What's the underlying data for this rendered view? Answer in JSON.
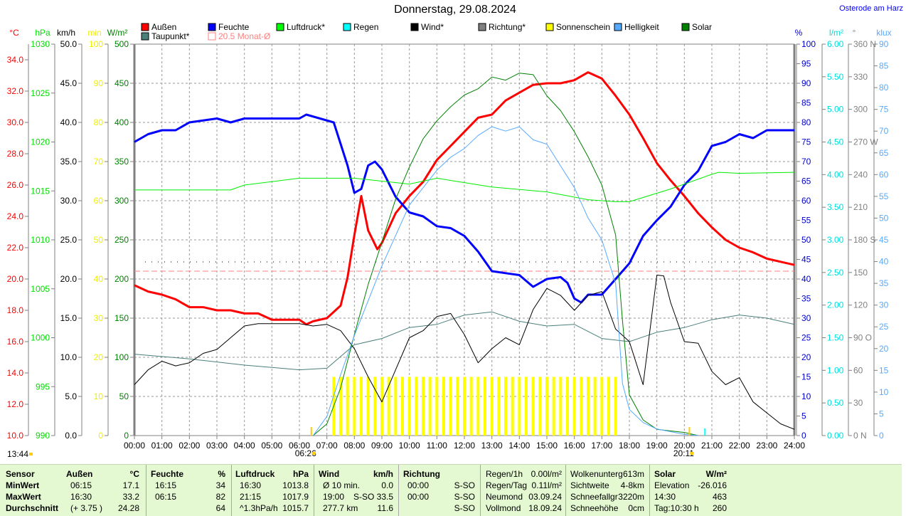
{
  "header": {
    "title": "Donnerstag, 29.08.2024",
    "station": "Osterode am Harz"
  },
  "legend": [
    {
      "label": "Außen",
      "color": "#ff0000"
    },
    {
      "label": "Feuchte",
      "color": "#0000ff"
    },
    {
      "label": "Luftdruck*",
      "color": "#00ff00"
    },
    {
      "label": "Regen",
      "color": "#00ffff"
    },
    {
      "label": "Wind*",
      "color": "#000000"
    },
    {
      "label": "Richtung*",
      "color": "#808080"
    },
    {
      "label": "Sonnenschein",
      "color": "#ffff00"
    },
    {
      "label": "Helligkeit",
      "color": "#55aaff"
    },
    {
      "label": "Solar",
      "color": "#008000"
    },
    {
      "label": "Taupunkt*",
      "color": "#4a7f7a"
    },
    {
      "label": "20.5 Monat-Ø",
      "color": "#ff8080"
    }
  ],
  "chart_data": {
    "type": "line",
    "title": "Donnerstag, 29.08.2024",
    "x_ticks": [
      "00:00",
      "01:00",
      "02:00",
      "03:00",
      "04:00",
      "05:00",
      "06:00",
      "07:00",
      "08:00",
      "09:00",
      "10:00",
      "11:00",
      "12:00",
      "13:00",
      "14:00",
      "15:00",
      "16:00",
      "17:00",
      "18:00",
      "19:00",
      "20:00",
      "21:00",
      "22:00",
      "23:00",
      "24:00"
    ],
    "sunrise": "06:26",
    "sunset": "20:11",
    "sunshine_total": "13:44",
    "monthly_avg_temp": 20.5,
    "axes": {
      "temp": {
        "unit": "°C",
        "range": [
          10,
          35
        ],
        "ticks": [
          "10.0",
          "12.0",
          "14.0",
          "16.0",
          "18.0",
          "20.0",
          "22.0",
          "24.0",
          "26.0",
          "28.0",
          "30.0",
          "32.0",
          "34.0"
        ],
        "color": "#ff0000"
      },
      "pressure": {
        "unit": "hPa",
        "range": [
          990,
          1030
        ],
        "ticks": [
          "990",
          "995",
          "1000",
          "1005",
          "1010",
          "1015",
          "1020",
          "1025",
          "1030"
        ],
        "color": "#00dd00"
      },
      "wind": {
        "unit": "km/h",
        "range": [
          0,
          50
        ],
        "ticks": [
          "0.0",
          "5.0",
          "10.0",
          "15.0",
          "20.0",
          "25.0",
          "30.0",
          "35.0",
          "40.0",
          "45.0",
          "50.0"
        ],
        "color": "#000000"
      },
      "sunshine": {
        "unit": "min",
        "range": [
          0,
          100
        ],
        "ticks": [
          "0",
          "10",
          "20",
          "30",
          "40",
          "50",
          "60",
          "70",
          "80",
          "90",
          "100"
        ],
        "color": "#eeee00"
      },
      "solar": {
        "unit": "W/m²",
        "range": [
          0,
          500
        ],
        "ticks": [
          "0",
          "50",
          "100",
          "150",
          "200",
          "250",
          "300",
          "350",
          "400",
          "450",
          "500"
        ],
        "color": "#008000"
      },
      "humidity": {
        "unit": "%",
        "range": [
          0,
          100
        ],
        "ticks": [
          "0",
          "5",
          "10",
          "15",
          "20",
          "25",
          "30",
          "35",
          "40",
          "45",
          "50",
          "55",
          "60",
          "65",
          "70",
          "75",
          "80",
          "85",
          "90",
          "95",
          "100"
        ],
        "color": "#0000cc"
      },
      "rain": {
        "unit": "l/m²",
        "range": [
          0,
          6
        ],
        "ticks": [
          "0.00",
          "0.50",
          "1.00",
          "1.50",
          "2.00",
          "2.50",
          "3.00",
          "3.50",
          "4.00",
          "4.50",
          "5.00",
          "5.50",
          "6.00"
        ],
        "color": "#00dddd"
      },
      "direction": {
        "unit": "°",
        "range": [
          0,
          360
        ],
        "ticks": [
          "0   N",
          "30",
          "60",
          "90   O",
          "120",
          "150",
          "180 S",
          "210",
          "240",
          "270 W",
          "300",
          "330",
          "360 N"
        ],
        "color": "#808080"
      },
      "brightness": {
        "unit": "klux",
        "range": [
          0,
          90
        ],
        "ticks": [
          "0",
          "5",
          "10",
          "15",
          "20",
          "25",
          "30",
          "35",
          "40",
          "45",
          "50",
          "55",
          "60",
          "65",
          "70",
          "75",
          "80",
          "85",
          "90"
        ],
        "color": "#55aaff"
      }
    },
    "series": [
      {
        "name": "Außen",
        "axis": "temp",
        "color": "#ff0000",
        "width": 3,
        "x": [
          "00:00",
          "00:30",
          "01:00",
          "01:30",
          "02:00",
          "02:30",
          "03:00",
          "03:30",
          "04:00",
          "04:30",
          "05:00",
          "05:30",
          "06:00",
          "06:15",
          "06:30",
          "07:00",
          "07:30",
          "07:45",
          "08:00",
          "08:15",
          "08:30",
          "08:50",
          "09:00",
          "09:30",
          "10:00",
          "10:30",
          "11:00",
          "11:30",
          "12:00",
          "12:30",
          "13:00",
          "13:30",
          "14:00",
          "14:30",
          "15:00",
          "15:30",
          "16:00",
          "16:30",
          "17:00",
          "17:30",
          "18:00",
          "18:30",
          "19:00",
          "19:30",
          "20:00",
          "20:30",
          "21:00",
          "21:30",
          "22:00",
          "22:30",
          "23:00",
          "23:30",
          "24:00"
        ],
        "y": [
          19.6,
          19.2,
          19.0,
          18.7,
          18.2,
          18.2,
          18.0,
          18.0,
          17.8,
          17.8,
          17.4,
          17.4,
          17.4,
          17.1,
          17.3,
          17.5,
          18.3,
          20.1,
          22.8,
          25.3,
          23.1,
          21.9,
          22.3,
          24.2,
          25.3,
          26.2,
          27.6,
          28.5,
          29.4,
          30.3,
          30.5,
          31.4,
          31.9,
          32.4,
          32.5,
          32.5,
          32.7,
          33.2,
          32.8,
          31.7,
          30.5,
          29.0,
          27.4,
          26.3,
          25.3,
          24.2,
          23.3,
          22.5,
          22.0,
          21.7,
          21.3,
          21.1,
          20.9
        ]
      },
      {
        "name": "Feuchte",
        "axis": "humidity",
        "color": "#0000ff",
        "width": 3,
        "x": [
          "00:00",
          "00:30",
          "01:00",
          "01:30",
          "02:00",
          "03:00",
          "03:30",
          "04:00",
          "05:00",
          "06:00",
          "06:15",
          "06:45",
          "07:15",
          "07:45",
          "08:00",
          "08:15",
          "08:30",
          "08:45",
          "09:00",
          "09:30",
          "10:00",
          "10:30",
          "11:00",
          "11:30",
          "12:00",
          "12:30",
          "13:00",
          "13:30",
          "14:00",
          "14:30",
          "15:00",
          "15:30",
          "15:45",
          "16:00",
          "16:15",
          "16:30",
          "17:00",
          "17:30",
          "18:00",
          "18:30",
          "19:00",
          "19:30",
          "20:00",
          "20:30",
          "21:00",
          "21:30",
          "22:00",
          "22:30",
          "23:00",
          "24:00"
        ],
        "y": [
          75,
          77,
          78,
          78,
          80,
          81,
          80,
          81,
          81,
          81,
          82,
          81,
          80,
          69,
          62,
          63,
          69,
          70,
          68,
          61,
          57,
          56,
          53.5,
          53,
          51,
          47,
          42,
          41.5,
          41,
          38,
          40,
          40.5,
          39,
          35,
          34,
          36,
          36,
          40,
          44,
          51,
          55,
          58.5,
          64,
          67.6,
          74,
          75,
          77,
          76,
          78,
          78
        ]
      },
      {
        "name": "Luftdruck*",
        "axis": "pressure",
        "color": "#00ee00",
        "width": 1,
        "x": [
          "00:00",
          "03:30",
          "04:00",
          "06:00",
          "08:00",
          "10:00",
          "11:00",
          "13:00",
          "15:00",
          "16:30",
          "17:30",
          "18:00",
          "19:30",
          "21:00",
          "21:15",
          "22:00",
          "24:00"
        ],
        "y": [
          1015.1,
          1015.1,
          1015.6,
          1016.3,
          1016.3,
          1015.7,
          1016.3,
          1015.4,
          1014.9,
          1014.1,
          1013.9,
          1013.9,
          1015.2,
          1016.7,
          1016.9,
          1016.8,
          1016.9
        ]
      },
      {
        "name": "Taupunkt*",
        "axis": "temp",
        "color": "#4a7f7a",
        "width": 1,
        "x": [
          "00:00",
          "02:00",
          "04:00",
          "06:00",
          "07:00",
          "08:00",
          "09:00",
          "10:00",
          "11:00",
          "12:00",
          "13:00",
          "14:00",
          "15:00",
          "16:00",
          "17:00",
          "18:00",
          "19:00",
          "20:00",
          "21:00",
          "22:00",
          "23:00",
          "24:00"
        ],
        "y": [
          15.2,
          14.9,
          14.5,
          14.2,
          14.3,
          15.8,
          16.2,
          16.9,
          17.1,
          17.7,
          17.9,
          17.3,
          17.0,
          17.1,
          16.2,
          16.0,
          16.6,
          16.9,
          17.4,
          17.7,
          17.5,
          17.1
        ]
      },
      {
        "name": "Wind*",
        "axis": "wind",
        "color": "#000000",
        "width": 1,
        "x": [
          "00:00",
          "00:30",
          "01:00",
          "01:30",
          "02:00",
          "02:30",
          "03:00",
          "03:30",
          "04:00",
          "04:30",
          "05:00",
          "06:00",
          "06:30",
          "07:00",
          "07:30",
          "08:00",
          "08:30",
          "09:00",
          "09:30",
          "10:00",
          "10:30",
          "11:00",
          "11:30",
          "12:00",
          "12:30",
          "13:00",
          "13:30",
          "14:00",
          "14:30",
          "15:00",
          "15:30",
          "16:00",
          "16:30",
          "17:00",
          "17:30",
          "18:00",
          "18:30",
          "19:00",
          "19:15",
          "19:30",
          "20:00",
          "20:30",
          "21:00",
          "21:30",
          "22:00",
          "22:30",
          "23:00",
          "23:30",
          "24:00"
        ],
        "y": [
          6.5,
          8.4,
          9.5,
          8.9,
          9.3,
          10.5,
          11.0,
          12.5,
          14.0,
          14.3,
          14.3,
          14.3,
          14.0,
          14.2,
          13.4,
          11.1,
          7.5,
          4.3,
          8.4,
          12.5,
          13.4,
          15.2,
          15.6,
          12.9,
          9.3,
          11.1,
          12.5,
          11.6,
          16.1,
          18.8,
          17.9,
          16.0,
          17.9,
          18.4,
          13.6,
          12.0,
          6.5,
          20.5,
          20.4,
          17.0,
          12.0,
          11.8,
          8.2,
          6.5,
          7.4,
          4.3,
          2.9,
          1.5,
          0.8
        ]
      },
      {
        "name": "Solar",
        "axis": "solar",
        "color": "#008000",
        "width": 1,
        "x": [
          "06:30",
          "07:00",
          "07:30",
          "08:00",
          "08:30",
          "09:00",
          "09:30",
          "10:00",
          "10:30",
          "11:00",
          "11:30",
          "12:00",
          "12:30",
          "13:00",
          "13:30",
          "14:00",
          "14:30",
          "15:00",
          "15:30",
          "16:00",
          "16:30",
          "17:00",
          "17:30",
          "17:45",
          "18:00",
          "18:30",
          "19:00",
          "20:00",
          "20:30"
        ],
        "y": [
          0,
          15,
          61,
          129,
          193,
          247,
          302,
          343,
          379,
          402,
          420,
          435,
          443,
          458,
          454,
          463,
          461,
          434,
          415,
          388,
          356,
          320,
          256,
          147,
          52,
          20,
          8,
          4,
          0
        ]
      },
      {
        "name": "Helligkeit",
        "axis": "brightness",
        "color": "#55aaff",
        "width": 1,
        "x": [
          "06:30",
          "07:00",
          "07:30",
          "08:00",
          "08:30",
          "09:00",
          "09:30",
          "10:00",
          "10:30",
          "11:00",
          "11:30",
          "12:00",
          "12:30",
          "13:00",
          "13:30",
          "14:00",
          "14:30",
          "15:00",
          "15:30",
          "16:00",
          "16:30",
          "17:00",
          "17:30",
          "17:45",
          "18:00",
          "18:30",
          "19:00",
          "20:00",
          "20:30"
        ],
        "y": [
          0,
          4.4,
          14,
          23,
          31,
          39,
          46,
          53,
          57,
          61,
          64,
          66,
          69,
          71,
          70,
          71,
          68,
          67,
          62,
          57,
          50,
          45,
          35,
          12,
          6,
          3,
          1.5,
          0.3,
          0
        ]
      },
      {
        "name": "Regen",
        "axis": "rain",
        "color": "#00ffff",
        "width": 2,
        "x": [
          "20:45",
          "20:45"
        ],
        "y": [
          0,
          0.11
        ]
      }
    ],
    "sunshine_bars": {
      "axis": "sunshine",
      "color": "#ffff00",
      "start": "07:15",
      "end": "17:30",
      "interval_min": 15,
      "value": 15
    }
  },
  "table": {
    "groups": [
      {
        "header": [
          "Sensor"
        ],
        "rows": [
          [
            "MinWert"
          ],
          [
            "MaxWert"
          ],
          [
            "Durchschnitt"
          ]
        ],
        "bold_rows": true
      },
      {
        "header": [
          "Außen",
          "°C"
        ],
        "rows": [
          [
            "06:15",
            "17.1"
          ],
          [
            "16:30",
            "33.2"
          ],
          [
            "(+ 3.75 )",
            "24.28"
          ]
        ]
      },
      {
        "header": [
          "Feuchte",
          "%"
        ],
        "rows": [
          [
            "16:15",
            "34"
          ],
          [
            "06:15",
            "82"
          ],
          [
            "",
            "64"
          ]
        ]
      },
      {
        "header": [
          "Luftdruck",
          "hPa"
        ],
        "rows": [
          [
            "16:30",
            "1013.8"
          ],
          [
            "21:15",
            "1017.9"
          ],
          [
            "^1.3hPa/h",
            "1015.7"
          ]
        ]
      },
      {
        "header": [
          "Wind",
          "km/h"
        ],
        "rows": [
          [
            "Ø 10 min.",
            "0.0"
          ],
          [
            "19:00",
            "S-SO 33.5"
          ],
          [
            "277.7 km",
            "11.6"
          ]
        ]
      },
      {
        "header": [
          "Richtung",
          ""
        ],
        "rows": [
          [
            "00:00",
            "S-SO"
          ],
          [
            "00:00",
            "S-SO"
          ],
          [
            "",
            "S-SO"
          ]
        ]
      },
      {
        "header": [
          "Regen/1h",
          "0.00l/m²"
        ],
        "plain_header": true,
        "rows": [
          [
            "Regen/Tag",
            "0.11l/m²"
          ],
          [
            "Neumond",
            "03.09.24"
          ],
          [
            "Vollmond",
            "18.09.24"
          ]
        ]
      },
      {
        "header": [
          "Wolkenunterg",
          "613m"
        ],
        "plain_header": true,
        "rows": [
          [
            "Sichtweite",
            "4-8km"
          ],
          [
            "Schneefallgr",
            "3220m"
          ],
          [
            "Schneehöhe",
            "0cm"
          ]
        ]
      },
      {
        "header": [
          "Solar",
          "W/m²"
        ],
        "rows": [
          [
            "Elevation",
            "-26.016"
          ],
          [
            "14:30",
            "463"
          ],
          [
            "Tag:10:30 h",
            "260"
          ]
        ]
      }
    ]
  }
}
